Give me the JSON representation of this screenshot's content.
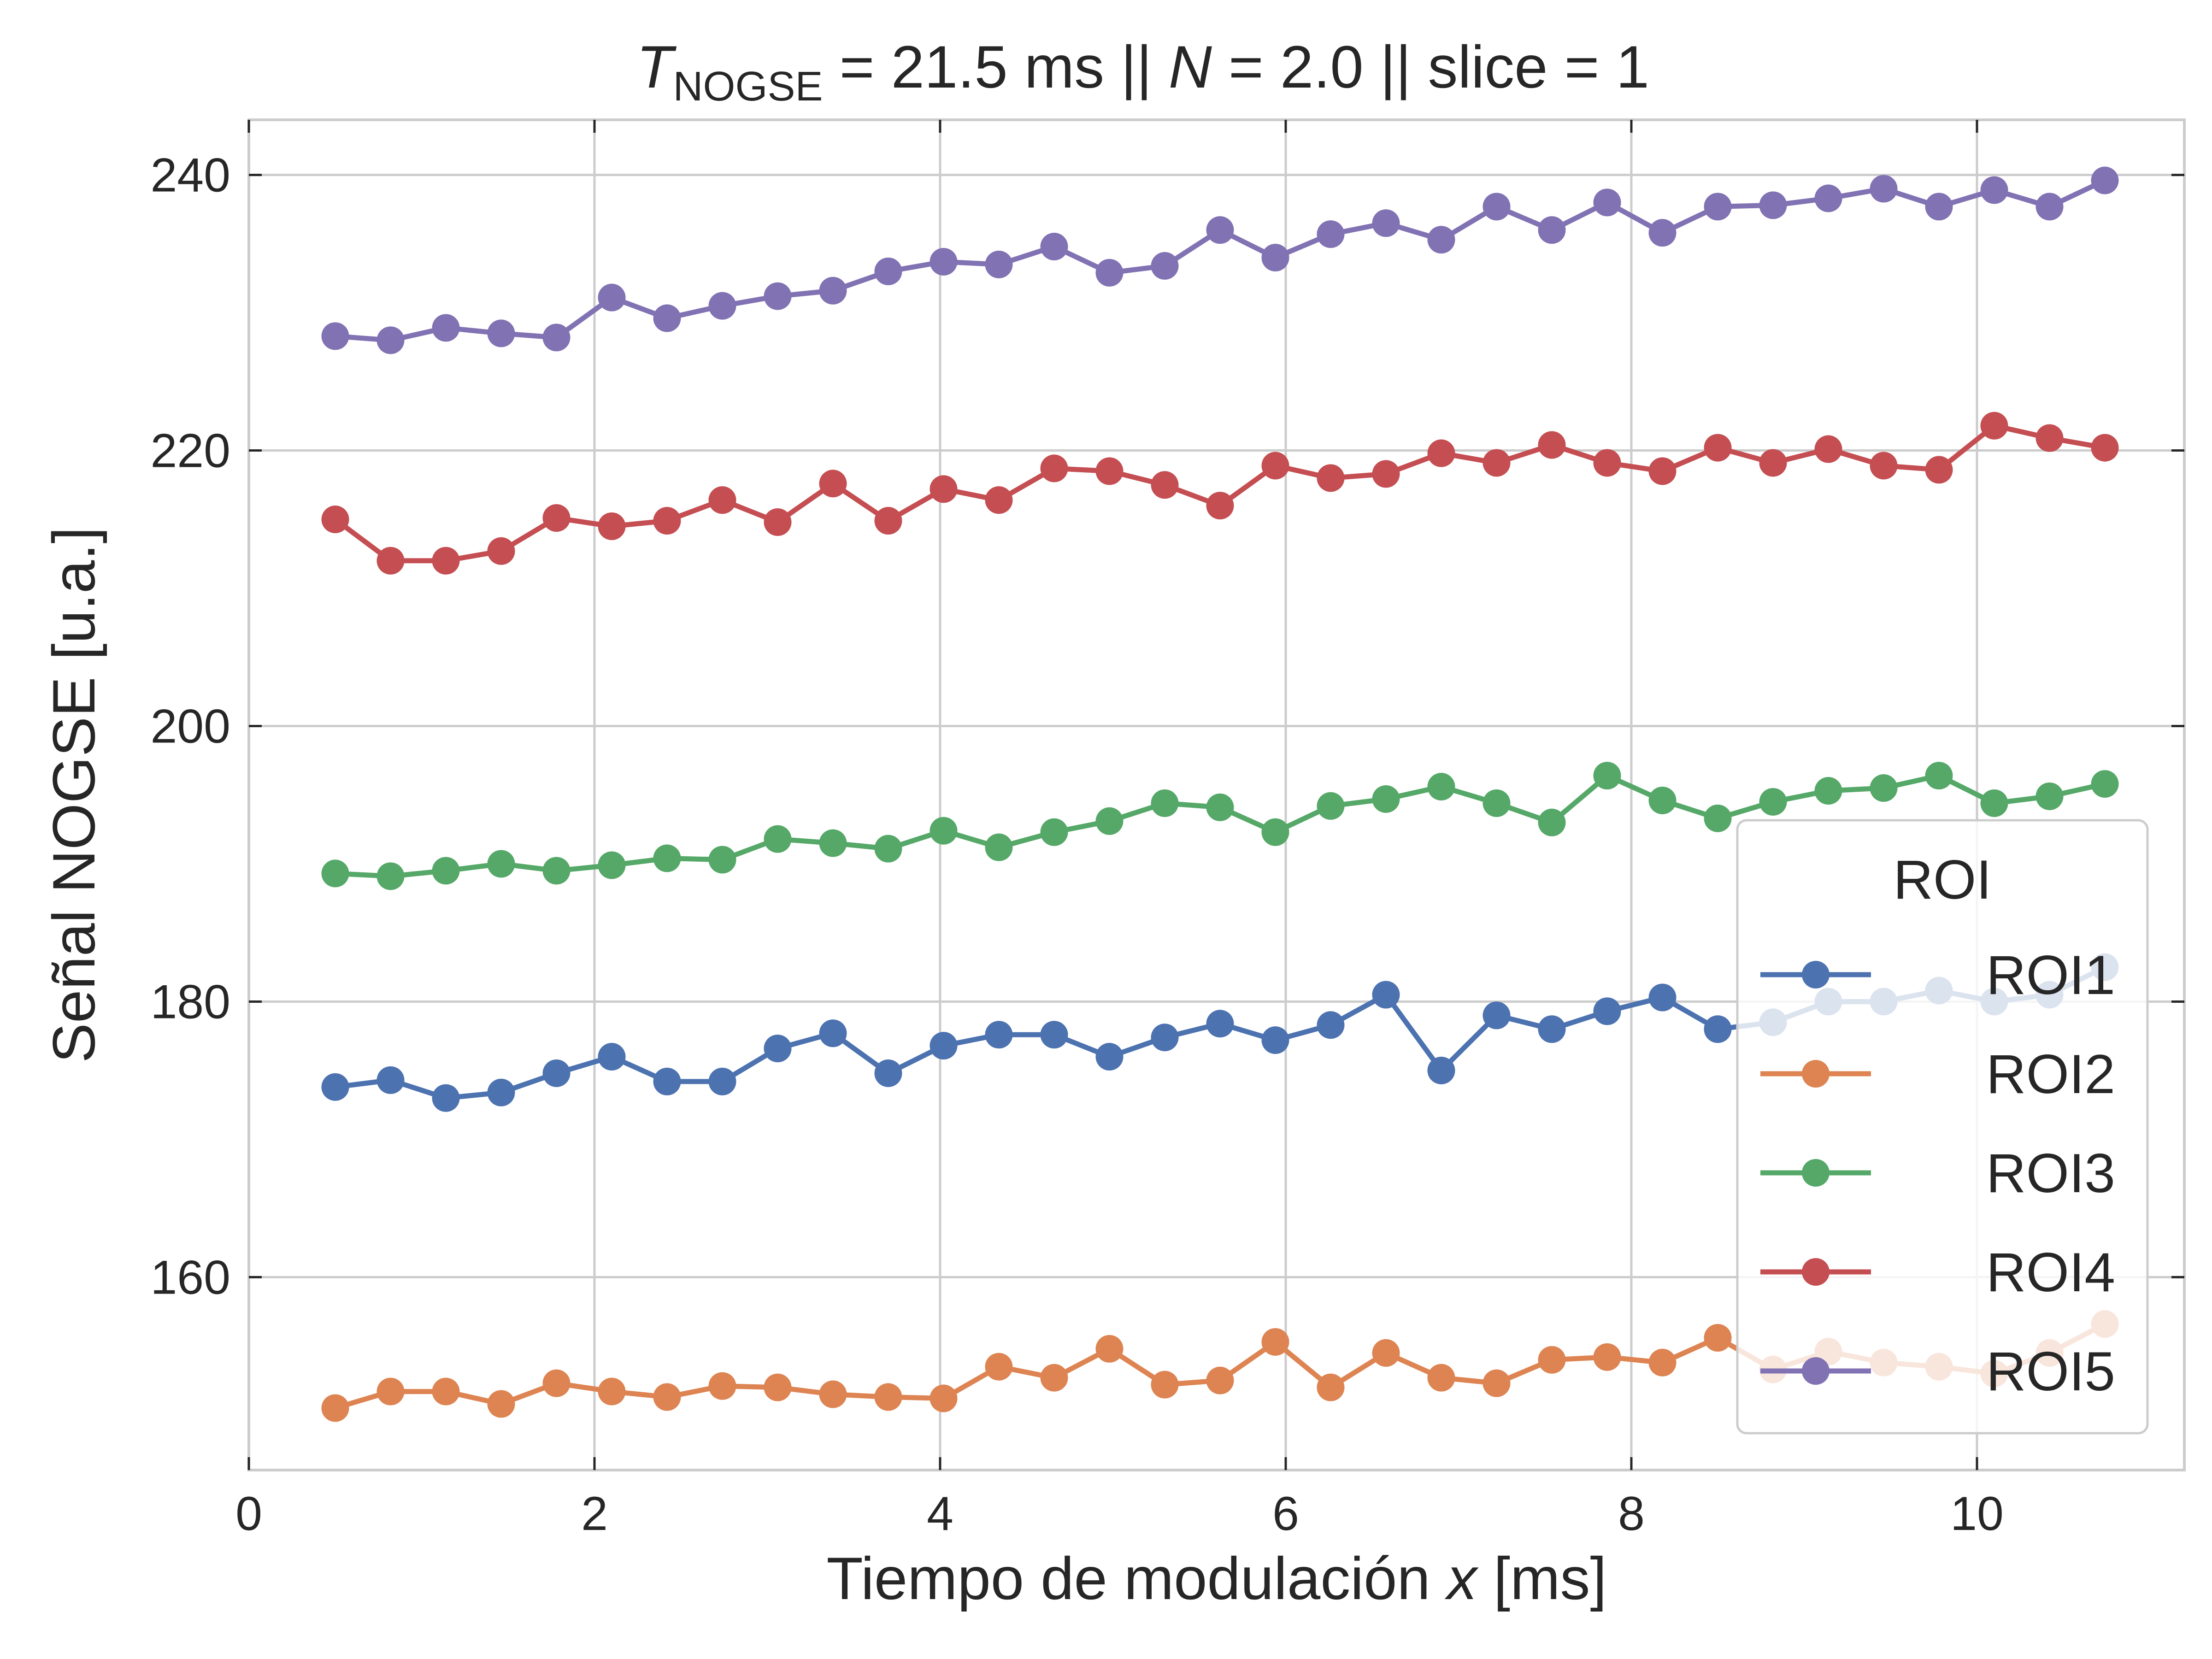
{
  "chart_data": {
    "type": "line",
    "title_parts": {
      "t_symbol": "T",
      "t_subscript": "NOGSE",
      "t_value": " = 21.5 ms  ||  ",
      "n_symbol": "N",
      "rest": " = 2.0 || slice = 1"
    },
    "xlabel_parts": {
      "text": "Tiempo de modulación ",
      "var": "x",
      "unit": " [ms]"
    },
    "ylabel": "Señal NOGSE [u.a.]",
    "xlim": [
      0,
      11.2
    ],
    "ylim": [
      146,
      244
    ],
    "x_ticks": [
      0,
      2,
      4,
      6,
      8,
      10
    ],
    "y_ticks": [
      160,
      180,
      200,
      220,
      240
    ],
    "grid": true,
    "legend": {
      "title": "ROI",
      "placement": "lower-right"
    },
    "x": [
      0.5,
      0.82,
      1.14,
      1.46,
      1.78,
      2.1,
      2.42,
      2.74,
      3.06,
      3.38,
      3.7,
      4.02,
      4.34,
      4.66,
      4.98,
      5.3,
      5.62,
      5.94,
      6.26,
      6.58,
      6.9,
      7.22,
      7.54,
      7.86,
      8.18,
      8.5,
      8.82,
      9.14,
      9.46,
      9.78,
      10.1,
      10.42,
      10.74
    ],
    "series": [
      {
        "name": "ROI1",
        "color": "#4c72b0",
        "values": [
          173.8,
          174.3,
          173.0,
          173.4,
          174.8,
          176.0,
          174.2,
          174.2,
          176.6,
          177.7,
          174.8,
          176.8,
          177.6,
          177.6,
          176.0,
          177.4,
          178.4,
          177.2,
          178.3,
          180.5,
          175.0,
          179.0,
          178.0,
          179.3,
          180.3,
          178.0,
          178.5,
          180.0,
          180.0,
          180.8,
          180.0,
          180.5,
          182.5
        ]
      },
      {
        "name": "ROI2",
        "color": "#dd8452",
        "values": [
          150.5,
          151.7,
          151.7,
          150.8,
          152.3,
          151.7,
          151.3,
          152.1,
          152.0,
          151.5,
          151.3,
          151.2,
          153.5,
          152.7,
          154.8,
          152.2,
          152.5,
          155.3,
          152.0,
          154.5,
          152.7,
          152.3,
          154.0,
          154.2,
          153.8,
          155.6,
          153.3,
          154.6,
          153.8,
          153.5,
          153.0,
          154.5,
          156.6
        ]
      },
      {
        "name": "ROI3",
        "color": "#55a868",
        "values": [
          189.3,
          189.1,
          189.5,
          190.0,
          189.5,
          189.9,
          190.4,
          190.3,
          191.8,
          191.5,
          191.1,
          192.4,
          191.2,
          192.3,
          193.1,
          194.4,
          194.1,
          192.3,
          194.2,
          194.7,
          195.6,
          194.4,
          193.0,
          196.4,
          194.6,
          193.3,
          194.5,
          195.3,
          195.5,
          196.4,
          194.4,
          194.9,
          195.8
        ]
      },
      {
        "name": "ROI4",
        "color": "#c44e52",
        "values": [
          215.0,
          212.0,
          212.0,
          212.7,
          215.1,
          214.5,
          214.9,
          216.4,
          214.8,
          217.6,
          214.9,
          217.2,
          216.4,
          218.7,
          218.5,
          217.5,
          216.0,
          218.9,
          218.0,
          218.3,
          219.8,
          219.1,
          220.4,
          219.1,
          218.5,
          220.2,
          219.1,
          220.1,
          218.9,
          218.6,
          221.8,
          220.9,
          220.2
        ]
      },
      {
        "name": "ROI5",
        "color": "#8172b3",
        "values": [
          228.3,
          228.0,
          228.9,
          228.5,
          228.2,
          231.1,
          229.6,
          230.5,
          231.2,
          231.6,
          233.0,
          233.7,
          233.5,
          234.8,
          232.9,
          233.4,
          236.0,
          234.0,
          235.7,
          236.5,
          235.3,
          237.7,
          236.0,
          238.0,
          235.8,
          237.7,
          237.8,
          238.3,
          239.0,
          237.7,
          238.9,
          237.7,
          239.6
        ]
      }
    ]
  }
}
